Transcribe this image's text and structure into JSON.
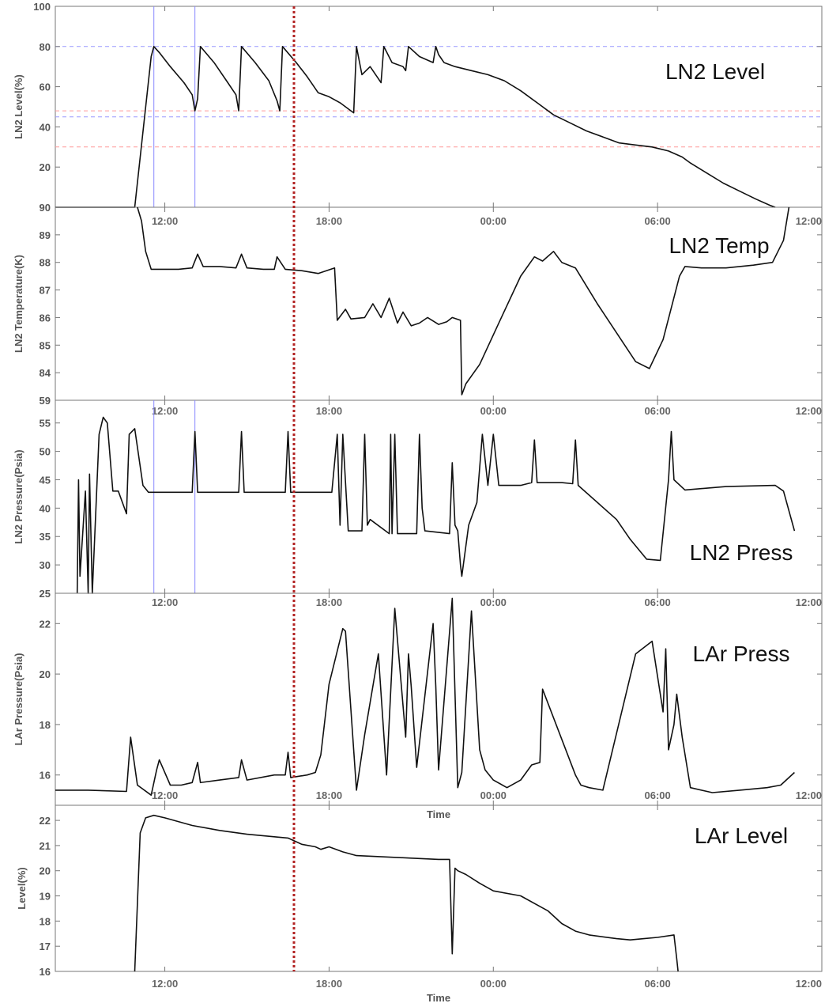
{
  "chart_data": [
    {
      "type": "line",
      "title": "LN2 Level",
      "ylabel": "LN2 Level(%)",
      "xlabel": "",
      "ylim": [
        0,
        100
      ],
      "yticks": [
        20,
        40,
        60,
        80,
        100
      ],
      "xticks": [
        "12:00",
        "18:00",
        "00:00",
        "06:00",
        "12:00"
      ],
      "ref_lines_y": [
        {
          "y": 80,
          "color": "#9999ff"
        },
        {
          "y": 48,
          "color": "#ff9999"
        },
        {
          "y": 45,
          "color": "#9999ff"
        },
        {
          "y": 30,
          "color": "#ff9999"
        }
      ],
      "ref_lines_x": [
        11.6,
        13.1
      ],
      "x": [
        8.0,
        9.1,
        10.9,
        11.5,
        11.6,
        11.8,
        12.2,
        12.7,
        13.0,
        13.1,
        13.2,
        13.3,
        13.8,
        14.3,
        14.6,
        14.7,
        14.8,
        15.3,
        15.8,
        16.1,
        16.2,
        16.3,
        16.8,
        17.2,
        17.6,
        18.0,
        18.4,
        18.8,
        18.9,
        19.0,
        19.2,
        19.5,
        19.8,
        19.9,
        20.0,
        20.3,
        20.7,
        20.8,
        20.9,
        21.3,
        21.8,
        21.9,
        22.0,
        22.2,
        22.6,
        23.2,
        23.8,
        24.4,
        25.0,
        25.6,
        26.2,
        26.8,
        27.4,
        28.0,
        28.6,
        29.2,
        29.8,
        30.4,
        30.9,
        31.2,
        31.8,
        32.4,
        33.0,
        33.6,
        34.1,
        34.3
      ],
      "values": [
        0,
        0,
        0,
        75,
        80,
        77,
        70,
        62,
        56,
        48,
        54,
        80,
        72,
        62,
        56,
        48,
        80,
        72,
        63,
        53,
        48,
        80,
        72,
        65,
        57,
        55,
        52,
        48,
        47,
        80,
        66,
        70,
        64,
        62,
        80,
        72,
        70,
        68,
        80,
        75,
        72,
        80,
        76,
        72,
        70,
        68,
        66,
        63,
        58,
        52,
        46,
        42,
        38,
        35,
        32,
        31,
        30,
        28,
        25,
        22,
        17,
        12,
        8,
        4,
        1,
        0
      ]
    },
    {
      "type": "line",
      "title": "LN2 Temp",
      "ylabel": "LN2 Temperature(K)",
      "xlabel": "",
      "ylim": [
        83,
        90
      ],
      "yticks": [
        84,
        85,
        86,
        87,
        88,
        89,
        90
      ],
      "xticks": [
        "12:00",
        "18:00",
        "00:00",
        "06:00",
        "12:00"
      ],
      "x": [
        11.0,
        11.15,
        11.3,
        11.5,
        11.8,
        12.5,
        13.0,
        13.2,
        13.4,
        14.0,
        14.6,
        14.8,
        15.0,
        15.6,
        16.0,
        16.1,
        16.4,
        17.0,
        17.6,
        18.2,
        18.3,
        18.6,
        18.8,
        19.3,
        19.6,
        19.9,
        20.2,
        20.5,
        20.7,
        21.0,
        21.3,
        21.6,
        22.0,
        22.3,
        22.5,
        22.8,
        22.85,
        23.0,
        23.5,
        24.2,
        25.0,
        25.5,
        25.8,
        26.2,
        26.5,
        27.0,
        27.8,
        28.6,
        29.2,
        29.7,
        30.2,
        30.8,
        31.0,
        31.6,
        32.5,
        33.5,
        34.2,
        34.6,
        34.8
      ],
      "values": [
        90,
        89.5,
        88.4,
        87.75,
        87.75,
        87.75,
        87.8,
        88.3,
        87.85,
        87.85,
        87.8,
        88.3,
        87.8,
        87.75,
        87.75,
        88.2,
        87.75,
        87.7,
        87.6,
        87.8,
        85.9,
        86.3,
        85.95,
        86.0,
        86.5,
        86.0,
        86.7,
        85.8,
        86.2,
        85.7,
        85.8,
        86.0,
        85.75,
        85.85,
        86.0,
        85.9,
        83.2,
        83.6,
        84.3,
        85.8,
        87.5,
        88.2,
        88.05,
        88.4,
        88.0,
        87.8,
        86.5,
        85.3,
        84.4,
        84.15,
        85.2,
        87.5,
        87.85,
        87.8,
        87.8,
        87.9,
        88.0,
        88.8,
        90
      ]
    },
    {
      "type": "line",
      "title": "LN2 Press",
      "ylabel": "LN2 Pressure(Psia)",
      "xlabel": "",
      "ylim": [
        25,
        59
      ],
      "yticks": [
        25,
        30,
        35,
        40,
        45,
        50,
        55,
        59
      ],
      "xticks": [
        "12:00",
        "18:00",
        "00:00",
        "06:00",
        "12:00"
      ],
      "ref_lines_x": [
        11.6,
        13.1
      ],
      "x": [
        8.8,
        8.85,
        8.9,
        9.1,
        9.2,
        9.25,
        9.35,
        9.6,
        9.75,
        9.9,
        10.1,
        10.3,
        10.6,
        10.7,
        10.9,
        11.2,
        11.4,
        11.6,
        12.2,
        13.0,
        13.1,
        13.2,
        13.3,
        14.0,
        14.7,
        14.8,
        14.9,
        15.5,
        16.4,
        16.5,
        16.6,
        17.3,
        17.7,
        18.1,
        18.3,
        18.4,
        18.5,
        18.7,
        19.2,
        19.3,
        19.4,
        19.5,
        20.2,
        20.25,
        20.3,
        20.4,
        20.5,
        21.2,
        21.3,
        21.4,
        21.5,
        22.4,
        22.5,
        22.6,
        22.7,
        22.8,
        22.85,
        23.1,
        23.4,
        23.6,
        23.8,
        24.0,
        24.2,
        25.0,
        25.4,
        25.5,
        25.6,
        26.5,
        26.9,
        27.0,
        27.1,
        28.5,
        29.0,
        29.6,
        30.1,
        30.4,
        30.5,
        30.6,
        31.0,
        32.5,
        34.3,
        34.6,
        35.0
      ],
      "values": [
        25,
        45,
        28,
        43,
        25,
        46,
        25,
        53,
        56,
        55,
        43,
        43,
        39,
        53,
        54,
        44,
        42.8,
        42.8,
        42.8,
        42.8,
        53.5,
        42.8,
        42.8,
        42.8,
        42.8,
        53.5,
        42.8,
        42.8,
        42.8,
        53.5,
        42.8,
        42.8,
        42.8,
        42.8,
        53,
        37,
        53,
        36,
        36,
        53,
        37,
        38,
        35.5,
        53,
        35.5,
        53,
        35.5,
        35.5,
        53,
        40,
        36,
        35.5,
        48,
        37,
        36,
        30,
        28,
        37,
        41,
        53,
        44,
        53,
        44,
        44,
        44.5,
        52,
        44.5,
        44.5,
        44.3,
        52,
        44,
        38,
        34.5,
        31,
        30.8,
        45,
        53.5,
        45,
        43.2,
        43.8,
        44,
        43,
        36
      ]
    },
    {
      "type": "line",
      "title": "LAr Press",
      "ylabel": "LAr Pressure(Psia)",
      "xlabel": "Time",
      "ylim": [
        14.8,
        23.2
      ],
      "yticks": [
        16,
        18,
        20,
        22
      ],
      "xticks": [
        "12:00",
        "18:00",
        "00:00",
        "06:00",
        "12:00"
      ],
      "x": [
        8.0,
        9.2,
        10.6,
        10.75,
        11.0,
        11.5,
        11.7,
        11.8,
        12.2,
        12.6,
        13.0,
        13.2,
        13.3,
        14.0,
        14.7,
        14.8,
        15.0,
        16.0,
        16.4,
        16.5,
        16.6,
        17.2,
        17.5,
        17.7,
        18.0,
        18.5,
        18.6,
        19.0,
        19.3,
        19.8,
        20.1,
        20.4,
        20.8,
        20.9,
        21.0,
        21.2,
        21.8,
        21.9,
        22.0,
        22.5,
        22.7,
        22.85,
        23.2,
        23.5,
        23.7,
        24.0,
        24.5,
        25.0,
        25.4,
        25.7,
        25.8,
        27.0,
        27.2,
        27.5,
        28.0,
        29.2,
        29.8,
        30.2,
        30.3,
        30.4,
        30.6,
        30.7,
        30.9,
        31.2,
        32.0,
        33.0,
        34.0,
        34.5,
        35.0
      ],
      "values": [
        15.4,
        15.4,
        15.35,
        17.5,
        15.6,
        15.2,
        16.2,
        16.6,
        15.6,
        15.6,
        15.7,
        16.5,
        15.7,
        15.8,
        15.9,
        16.6,
        15.8,
        16.0,
        16.0,
        16.9,
        15.9,
        16.0,
        16.1,
        16.8,
        19.6,
        21.8,
        21.7,
        15.4,
        17.6,
        20.8,
        16.0,
        22.6,
        17.5,
        20.8,
        19.5,
        16.3,
        22.0,
        19.5,
        16.2,
        23.0,
        15.5,
        16.1,
        22.5,
        17.0,
        16.2,
        15.8,
        15.5,
        15.8,
        16.4,
        16.5,
        19.4,
        16.0,
        15.6,
        15.5,
        15.4,
        20.8,
        21.3,
        18.5,
        21.0,
        17.0,
        18.0,
        19.2,
        17.5,
        15.5,
        15.3,
        15.4,
        15.5,
        15.6,
        16.1
      ]
    },
    {
      "type": "line",
      "title": "LAr Level",
      "ylabel": "Level(%)",
      "xlabel": "Time",
      "ylim": [
        16,
        22.6
      ],
      "yticks": [
        16,
        17,
        18,
        19,
        20,
        21,
        22
      ],
      "xticks": [
        "12:00",
        "18:00",
        "00:00",
        "06:00",
        "12:00"
      ],
      "x": [
        10.9,
        11.1,
        11.3,
        11.6,
        12.0,
        13.0,
        14.0,
        15.0,
        16.0,
        16.5,
        17.0,
        17.5,
        17.7,
        18.0,
        18.5,
        19.0,
        20.0,
        21.0,
        22.0,
        22.4,
        22.5,
        22.6,
        22.7,
        23.0,
        23.5,
        24.0,
        25.0,
        26.0,
        26.5,
        27.0,
        27.5,
        28.5,
        29.0,
        29.5,
        30.0,
        30.6,
        30.7,
        30.75
      ],
      "values": [
        16,
        21.5,
        22.1,
        22.2,
        22.1,
        21.8,
        21.6,
        21.45,
        21.35,
        21.3,
        21.05,
        20.95,
        20.85,
        20.95,
        20.75,
        20.6,
        20.55,
        20.5,
        20.45,
        20.45,
        16.7,
        20.1,
        20.0,
        19.85,
        19.5,
        19.2,
        19.0,
        18.4,
        17.9,
        17.6,
        17.45,
        17.3,
        17.25,
        17.3,
        17.35,
        17.45,
        16.5,
        16
      ]
    }
  ],
  "x_title_mid": "Time",
  "x_title_bottom": "Time"
}
